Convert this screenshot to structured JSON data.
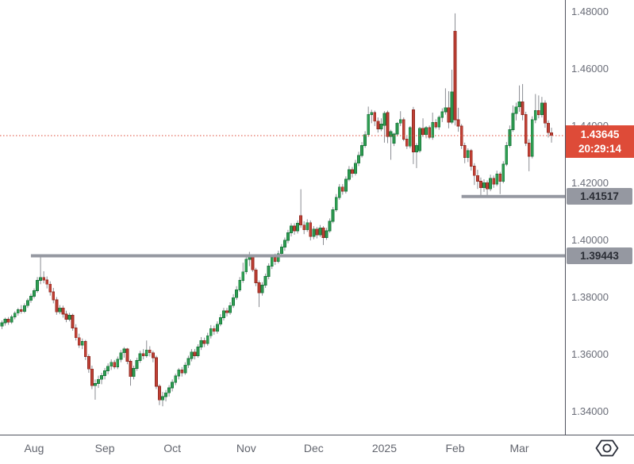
{
  "colors": {
    "background": "#ffffff",
    "up_fill": "#2f9e52",
    "up_stroke": "#1b7a3e",
    "down_fill": "#c04035",
    "down_stroke": "#932b22",
    "wick": "#8b8d93",
    "current_line": "#de4b38",
    "current_badge_bg": "#de4b38",
    "current_badge_text": "#ffffff",
    "level_line": "#9598a1",
    "level_badge_bg": "#9598a1",
    "level_badge_text": "#2a2d35",
    "axis_text": "#6a6d78",
    "axis_line": "#50535e"
  },
  "chart_data": {
    "type": "candlestick",
    "title": "",
    "grid": "off",
    "legend": "none",
    "y_axis": {
      "side": "right",
      "tick_labels": [
        "1.48000",
        "1.46000",
        "1.44000",
        "1.42000",
        "1.40000",
        "1.38000",
        "1.36000",
        "1.34000"
      ],
      "tick_values": [
        1.48,
        1.46,
        1.44,
        1.42,
        1.4,
        1.38,
        1.36,
        1.34
      ],
      "visible_range": [
        1.3316,
        1.4839
      ]
    },
    "x_axis": {
      "labels": [
        {
          "label": "Aug",
          "index": 10
        },
        {
          "label": "Sep",
          "index": 32
        },
        {
          "label": "Oct",
          "index": 53
        },
        {
          "label": "Nov",
          "index": 76
        },
        {
          "label": "Dec",
          "index": 97
        },
        {
          "label": "2025",
          "index": 119
        },
        {
          "label": "Feb",
          "index": 141
        },
        {
          "label": "Mar",
          "index": 161
        }
      ]
    },
    "current_price": {
      "value": 1.43645,
      "label": "1.43645",
      "countdown": "20:29:14"
    },
    "levels": [
      {
        "value": 1.41517,
        "label": "1.41517",
        "start_index": 143
      },
      {
        "value": 1.39443,
        "label": "1.39443",
        "start_index": 9
      }
    ],
    "candles": [
      [
        1.3698,
        1.3718,
        1.3688,
        1.371
      ],
      [
        1.371,
        1.3728,
        1.37,
        1.3722
      ],
      [
        1.3722,
        1.373,
        1.3703,
        1.3712
      ],
      [
        1.3712,
        1.3738,
        1.3706,
        1.3731
      ],
      [
        1.3731,
        1.375,
        1.3722,
        1.3744
      ],
      [
        1.3744,
        1.3762,
        1.3735,
        1.3756
      ],
      [
        1.3756,
        1.3772,
        1.3742,
        1.375
      ],
      [
        1.375,
        1.3778,
        1.3744,
        1.377
      ],
      [
        1.377,
        1.3795,
        1.3762,
        1.3788
      ],
      [
        1.3788,
        1.3812,
        1.378,
        1.3803
      ],
      [
        1.3803,
        1.383,
        1.3795,
        1.3822
      ],
      [
        1.3822,
        1.387,
        1.3815,
        1.3858
      ],
      [
        1.3858,
        1.3944,
        1.3845,
        1.3868
      ],
      [
        1.3868,
        1.389,
        1.3848,
        1.386
      ],
      [
        1.386,
        1.3872,
        1.383,
        1.3845
      ],
      [
        1.3845,
        1.3855,
        1.3805,
        1.3818
      ],
      [
        1.3818,
        1.3832,
        1.3778,
        1.379
      ],
      [
        1.379,
        1.38,
        1.3738,
        1.3748
      ],
      [
        1.3748,
        1.3772,
        1.374,
        1.3762
      ],
      [
        1.3762,
        1.377,
        1.3728,
        1.374
      ],
      [
        1.374,
        1.3752,
        1.3712,
        1.3722
      ],
      [
        1.3722,
        1.3745,
        1.3715,
        1.3736
      ],
      [
        1.3736,
        1.3742,
        1.3682,
        1.3692
      ],
      [
        1.3692,
        1.3705,
        1.3648,
        1.3658
      ],
      [
        1.3658,
        1.3672,
        1.3622,
        1.3632
      ],
      [
        1.3632,
        1.3655,
        1.3618,
        1.3645
      ],
      [
        1.3645,
        1.365,
        1.358,
        1.3592
      ],
      [
        1.3592,
        1.36,
        1.3535,
        1.3548
      ],
      [
        1.3548,
        1.356,
        1.3478,
        1.349
      ],
      [
        1.349,
        1.3512,
        1.3441,
        1.3498
      ],
      [
        1.3498,
        1.3525,
        1.3482,
        1.3512
      ],
      [
        1.3512,
        1.3535,
        1.3495,
        1.3525
      ],
      [
        1.3525,
        1.3552,
        1.3512,
        1.3542
      ],
      [
        1.3542,
        1.3568,
        1.353,
        1.3558
      ],
      [
        1.3558,
        1.3582,
        1.3545,
        1.3572
      ],
      [
        1.3572,
        1.358,
        1.3548,
        1.3556
      ],
      [
        1.3556,
        1.3592,
        1.3548,
        1.3582
      ],
      [
        1.3582,
        1.3615,
        1.3572,
        1.3605
      ],
      [
        1.3605,
        1.3625,
        1.3588,
        1.3618
      ],
      [
        1.3618,
        1.3622,
        1.3565,
        1.3575
      ],
      [
        1.3575,
        1.3582,
        1.349,
        1.3522
      ],
      [
        1.3522,
        1.356,
        1.3512,
        1.355
      ],
      [
        1.355,
        1.3588,
        1.3542,
        1.3578
      ],
      [
        1.3578,
        1.3612,
        1.357,
        1.3602
      ],
      [
        1.3602,
        1.3618,
        1.3582,
        1.3595
      ],
      [
        1.3595,
        1.3648,
        1.3588,
        1.3615
      ],
      [
        1.3615,
        1.3628,
        1.3592,
        1.3605
      ],
      [
        1.3605,
        1.3612,
        1.3572,
        1.3588
      ],
      [
        1.3588,
        1.3595,
        1.3478,
        1.3488
      ],
      [
        1.3488,
        1.3495,
        1.3422,
        1.344
      ],
      [
        1.344,
        1.3468,
        1.3418,
        1.3452
      ],
      [
        1.3452,
        1.3475,
        1.3435,
        1.3465
      ],
      [
        1.3465,
        1.3492,
        1.3452,
        1.3482
      ],
      [
        1.3482,
        1.3512,
        1.347,
        1.3502
      ],
      [
        1.3502,
        1.3532,
        1.3492,
        1.3524
      ],
      [
        1.3524,
        1.3552,
        1.3512,
        1.3545
      ],
      [
        1.3545,
        1.3555,
        1.3522,
        1.3535
      ],
      [
        1.3535,
        1.3572,
        1.3528,
        1.3562
      ],
      [
        1.3562,
        1.3595,
        1.3552,
        1.3585
      ],
      [
        1.3585,
        1.3618,
        1.3575,
        1.3608
      ],
      [
        1.3608,
        1.3618,
        1.3582,
        1.3595
      ],
      [
        1.3595,
        1.3635,
        1.3588,
        1.3625
      ],
      [
        1.3625,
        1.366,
        1.3615,
        1.3648
      ],
      [
        1.3648,
        1.3658,
        1.3625,
        1.3638
      ],
      [
        1.3638,
        1.3675,
        1.363,
        1.3665
      ],
      [
        1.3665,
        1.3702,
        1.3655,
        1.369
      ],
      [
        1.369,
        1.37,
        1.3668,
        1.368
      ],
      [
        1.368,
        1.3715,
        1.3672,
        1.3705
      ],
      [
        1.3705,
        1.374,
        1.3698,
        1.3728
      ],
      [
        1.3728,
        1.3762,
        1.3718,
        1.3752
      ],
      [
        1.3752,
        1.3762,
        1.3732,
        1.3745
      ],
      [
        1.3745,
        1.3782,
        1.3738,
        1.377
      ],
      [
        1.377,
        1.381,
        1.3762,
        1.3798
      ],
      [
        1.3798,
        1.3838,
        1.379,
        1.3825
      ],
      [
        1.3825,
        1.387,
        1.3818,
        1.3858
      ],
      [
        1.3858,
        1.392,
        1.385,
        1.3888
      ],
      [
        1.3888,
        1.3945,
        1.388,
        1.3932
      ],
      [
        1.3932,
        1.3958,
        1.3908,
        1.394
      ],
      [
        1.394,
        1.3945,
        1.3888,
        1.3895
      ],
      [
        1.3895,
        1.3902,
        1.3838,
        1.385
      ],
      [
        1.385,
        1.3858,
        1.3765,
        1.3815
      ],
      [
        1.3815,
        1.3852,
        1.3805,
        1.3842
      ],
      [
        1.3842,
        1.3882,
        1.3832,
        1.3872
      ],
      [
        1.3872,
        1.3918,
        1.3862,
        1.3908
      ],
      [
        1.3908,
        1.3948,
        1.3898,
        1.3938
      ],
      [
        1.3938,
        1.3952,
        1.3912,
        1.3925
      ],
      [
        1.3925,
        1.3962,
        1.3918,
        1.3952
      ],
      [
        1.3952,
        1.3985,
        1.394,
        1.3975
      ],
      [
        1.3975,
        1.4008,
        1.3962,
        1.3998
      ],
      [
        1.3998,
        1.4035,
        1.3988,
        1.4025
      ],
      [
        1.4025,
        1.4058,
        1.4012,
        1.4048
      ],
      [
        1.4048,
        1.4058,
        1.4018,
        1.4032
      ],
      [
        1.4032,
        1.4068,
        1.4022,
        1.4058
      ],
      [
        1.4085,
        1.4177,
        1.4042,
        1.4052
      ],
      [
        1.4052,
        1.4065,
        1.402,
        1.4035
      ],
      [
        1.4035,
        1.4072,
        1.4028,
        1.406
      ],
      [
        1.406,
        1.4068,
        1.3998,
        1.4012
      ],
      [
        1.4012,
        1.4048,
        1.4002,
        1.4038
      ],
      [
        1.4038,
        1.4045,
        1.4005,
        1.4018
      ],
      [
        1.4018,
        1.4052,
        1.401,
        1.4042
      ],
      [
        1.4042,
        1.4048,
        1.3982,
        1.4008
      ],
      [
        1.4008,
        1.4042,
        1.4,
        1.4032
      ],
      [
        1.4032,
        1.4075,
        1.4025,
        1.4065
      ],
      [
        1.4065,
        1.4115,
        1.4058,
        1.4105
      ],
      [
        1.4105,
        1.416,
        1.4098,
        1.4148
      ],
      [
        1.4148,
        1.4195,
        1.414,
        1.4185
      ],
      [
        1.4185,
        1.4195,
        1.4158,
        1.417
      ],
      [
        1.417,
        1.4222,
        1.4162,
        1.4212
      ],
      [
        1.4212,
        1.4258,
        1.4205,
        1.4245
      ],
      [
        1.4245,
        1.4255,
        1.4218,
        1.4232
      ],
      [
        1.4232,
        1.428,
        1.4225,
        1.4268
      ],
      [
        1.4268,
        1.4308,
        1.4258,
        1.4295
      ],
      [
        1.4295,
        1.4342,
        1.4288,
        1.433
      ],
      [
        1.433,
        1.438,
        1.4322,
        1.4368
      ],
      [
        1.4368,
        1.4466,
        1.436,
        1.4438
      ],
      [
        1.4438,
        1.4455,
        1.4408,
        1.4445
      ],
      [
        1.4445,
        1.4452,
        1.4398,
        1.4415
      ],
      [
        1.4415,
        1.4428,
        1.4375,
        1.4388
      ],
      [
        1.4388,
        1.4425,
        1.438,
        1.4405
      ],
      [
        1.44,
        1.445,
        1.434,
        1.4442
      ],
      [
        1.4445,
        1.4452,
        1.4338,
        1.4362
      ],
      [
        1.4362,
        1.4385,
        1.428,
        1.4378
      ],
      [
        1.4338,
        1.4375,
        1.4328,
        1.437
      ],
      [
        1.437,
        1.4412,
        1.4362,
        1.4408
      ],
      [
        1.4408,
        1.445,
        1.4398,
        1.442
      ],
      [
        1.442,
        1.4428,
        1.4345,
        1.4352
      ],
      [
        1.4352,
        1.4362,
        1.4318,
        1.4328
      ],
      [
        1.4328,
        1.4398,
        1.432,
        1.4392
      ],
      [
        1.4455,
        1.4465,
        1.4265,
        1.4308
      ],
      [
        1.4308,
        1.4338,
        1.4251,
        1.433
      ],
      [
        1.4312,
        1.4395,
        1.4305,
        1.439
      ],
      [
        1.439,
        1.4425,
        1.436,
        1.4368
      ],
      [
        1.4368,
        1.4398,
        1.4355,
        1.4392
      ],
      [
        1.4392,
        1.44,
        1.4352,
        1.4358
      ],
      [
        1.4358,
        1.4445,
        1.435,
        1.441
      ],
      [
        1.441,
        1.4422,
        1.4388,
        1.4395
      ],
      [
        1.4395,
        1.4435,
        1.4385,
        1.4428
      ],
      [
        1.4428,
        1.446,
        1.4412,
        1.4448
      ],
      [
        1.4448,
        1.453,
        1.4438,
        1.4462
      ],
      [
        1.4462,
        1.452,
        1.439,
        1.4412
      ],
      [
        1.4412,
        1.4595,
        1.4405,
        1.4517
      ],
      [
        1.473,
        1.4792,
        1.44,
        1.442
      ],
      [
        1.442,
        1.4462,
        1.4378,
        1.4398
      ],
      [
        1.4398,
        1.4405,
        1.4318,
        1.433
      ],
      [
        1.433,
        1.434,
        1.4268,
        1.4288
      ],
      [
        1.4288,
        1.432,
        1.4272,
        1.4312
      ],
      [
        1.4312,
        1.4318,
        1.4242,
        1.4258
      ],
      [
        1.4258,
        1.4268,
        1.4192,
        1.4225
      ],
      [
        1.4225,
        1.4245,
        1.4178,
        1.4205
      ],
      [
        1.4205,
        1.4218,
        1.4151,
        1.4182
      ],
      [
        1.4182,
        1.4212,
        1.4168,
        1.42
      ],
      [
        1.42,
        1.4208,
        1.4155,
        1.4178
      ],
      [
        1.4178,
        1.4228,
        1.417,
        1.4215
      ],
      [
        1.4215,
        1.4225,
        1.4182,
        1.4195
      ],
      [
        1.4195,
        1.4242,
        1.4188,
        1.423
      ],
      [
        1.423,
        1.4238,
        1.416,
        1.4205
      ],
      [
        1.4205,
        1.4275,
        1.4198,
        1.4265
      ],
      [
        1.4265,
        1.4342,
        1.4258,
        1.433
      ],
      [
        1.433,
        1.44,
        1.4322,
        1.4385
      ],
      [
        1.4385,
        1.447,
        1.4378,
        1.4442
      ],
      [
        1.4442,
        1.448,
        1.4418,
        1.4465
      ],
      [
        1.4465,
        1.454,
        1.4448,
        1.4482
      ],
      [
        1.4482,
        1.4545,
        1.4418,
        1.4438
      ],
      [
        1.4438,
        1.4448,
        1.4328,
        1.4338
      ],
      [
        1.4338,
        1.4352,
        1.424,
        1.4292
      ],
      [
        1.4292,
        1.4432,
        1.4285,
        1.442
      ],
      [
        1.442,
        1.451,
        1.4408,
        1.4452
      ],
      [
        1.4452,
        1.4505,
        1.4425,
        1.4438
      ],
      [
        1.4438,
        1.45,
        1.4428,
        1.4478
      ],
      [
        1.4478,
        1.4488,
        1.4392,
        1.4408
      ],
      [
        1.4408,
        1.4418,
        1.4358,
        1.4375
      ],
      [
        1.4375,
        1.4392,
        1.434,
        1.4365
      ]
    ]
  }
}
